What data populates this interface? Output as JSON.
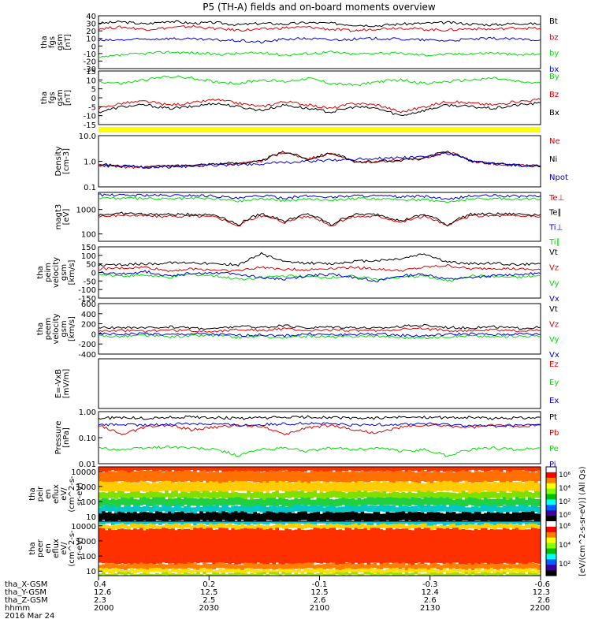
{
  "title": "P5 (TH-A) fields and on-board moments overview",
  "colors": {
    "black": "#000000",
    "red": "#e00000",
    "blue": "#0000e0",
    "green": "#00e000",
    "yellow": "#ffff00"
  },
  "chart_data": [
    {
      "type": "line",
      "ylabel": [
        "tha",
        "fgs",
        "gsm",
        "[nT]"
      ],
      "ylim": [
        -30,
        40
      ],
      "ticks": [
        "40",
        "30",
        "20",
        "10",
        "0",
        "-10",
        "-20",
        "-30"
      ],
      "series": [
        {
          "name": "Bt",
          "color": "#000000",
          "values": [
            30,
            32,
            29,
            33,
            30,
            31,
            28,
            30,
            29,
            31,
            30,
            28,
            27,
            29,
            30,
            31,
            29,
            28,
            30,
            29
          ]
        },
        {
          "name": "bz",
          "color": "#e00000",
          "values": [
            23,
            25,
            22,
            24,
            26,
            23,
            21,
            22,
            24,
            25,
            22,
            20,
            23,
            24,
            22,
            21,
            23,
            22,
            24,
            23
          ]
        },
        {
          "name": "by",
          "color": "#00e000",
          "values": [
            -16,
            -12,
            -10,
            -8,
            -9,
            -11,
            -10,
            -9,
            -12,
            -10,
            -8,
            -11,
            -9,
            -10,
            -12,
            -11,
            -10,
            -9,
            -12,
            -10
          ]
        },
        {
          "name": "bx",
          "color": "#0000e0",
          "values": [
            7,
            8,
            9,
            10,
            9,
            8,
            7,
            5,
            9,
            10,
            8,
            9,
            10,
            9,
            8,
            7,
            9,
            10,
            9,
            8
          ]
        }
      ]
    },
    {
      "type": "line",
      "ylabel": [
        "tha",
        "fgs",
        "gsm",
        "[nT]"
      ],
      "ylim": [
        -15,
        15
      ],
      "ticks": [
        "15",
        "10",
        "5",
        "0",
        "-5",
        "-10",
        "-15"
      ],
      "series": [
        {
          "name": "By",
          "color": "#00e000",
          "values": [
            9,
            8,
            10,
            12,
            11,
            9,
            8,
            10,
            9,
            11,
            8,
            7,
            9,
            10,
            8,
            9,
            10,
            11,
            9,
            8
          ]
        },
        {
          "name": "Bz",
          "color": "#e00000",
          "values": [
            -6,
            -3,
            -2,
            -4,
            -3,
            -1,
            -3,
            -5,
            -2,
            -4,
            -6,
            -3,
            -4,
            -8,
            -5,
            -2,
            -3,
            -4,
            -2,
            -1
          ]
        },
        {
          "name": "Bx",
          "color": "#000000",
          "values": [
            -8,
            -5,
            -4,
            -6,
            -5,
            -3,
            -5,
            -7,
            -4,
            -6,
            -8,
            -5,
            -6,
            -10,
            -7,
            -4,
            -5,
            -6,
            -4,
            -3
          ]
        }
      ]
    },
    {
      "type": "line",
      "ylabel": [
        "Density",
        "[cm-3]"
      ],
      "scale": "log",
      "ylim": [
        0.1,
        10.0
      ],
      "ticks": [
        "10.0",
        "1.0",
        "0.1"
      ],
      "series": [
        {
          "name": "Ne",
          "color": "#e00000",
          "values": [
            0.7,
            0.6,
            0.6,
            0.65,
            0.7,
            0.75,
            0.8,
            1.0,
            2.2,
            1.2,
            2.0,
            0.9,
            1.0,
            1.1,
            1.3,
            2.3,
            1.0,
            0.8,
            0.7,
            0.6
          ]
        },
        {
          "name": "Ni",
          "color": "#000000",
          "values": [
            0.8,
            0.65,
            0.6,
            0.65,
            0.7,
            0.8,
            0.85,
            1.0,
            2.3,
            1.2,
            2.1,
            0.9,
            1.0,
            1.1,
            1.3,
            2.4,
            1.0,
            0.8,
            0.7,
            0.65
          ]
        },
        {
          "name": "Npot",
          "color": "#0000e0",
          "values": [
            0.7,
            0.6,
            0.6,
            0.6,
            0.65,
            0.7,
            0.75,
            0.8,
            0.9,
            1.0,
            1.1,
            1.2,
            1.3,
            1.4,
            1.5,
            2.0,
            1.0,
            0.8,
            0.7,
            0.6
          ]
        }
      ]
    },
    {
      "type": "line",
      "ylabel": [
        "magt3",
        "[eV]"
      ],
      "scale": "log",
      "ylim": [
        50,
        5000
      ],
      "ticks": [
        "1000",
        "100"
      ],
      "series": [
        {
          "name": "Te⊥",
          "color": "#e00000",
          "values": [
            500,
            600,
            550,
            520,
            540,
            500,
            200,
            560,
            300,
            540,
            200,
            520,
            530,
            300,
            520,
            200,
            540,
            560,
            550,
            520
          ]
        },
        {
          "name": "Te∥",
          "color": "#000000",
          "values": [
            600,
            700,
            650,
            620,
            640,
            600,
            220,
            660,
            330,
            640,
            220,
            620,
            630,
            330,
            620,
            220,
            640,
            660,
            650,
            620
          ]
        },
        {
          "name": "Ti⊥",
          "color": "#0000e0",
          "values": [
            4000,
            3800,
            3900,
            3700,
            3800,
            3600,
            2800,
            3700,
            3000,
            3600,
            3200,
            3700,
            3600,
            3300,
            3500,
            2500,
            3600,
            3700,
            3500,
            3600
          ]
        },
        {
          "name": "Ti∥",
          "color": "#00e000",
          "values": [
            3000,
            2900,
            2800,
            2700,
            2900,
            2800,
            2200,
            2800,
            2300,
            2700,
            2500,
            2800,
            2700,
            2500,
            2600,
            2000,
            2700,
            2800,
            2700,
            2700
          ]
        }
      ]
    },
    {
      "type": "line",
      "ylabel": [
        "tha",
        "peim",
        "velocity",
        "gsm",
        "[km/s]"
      ],
      "ylim": [
        -150,
        150
      ],
      "ticks": [
        "150",
        "100",
        "50",
        "0",
        "-50",
        "-100",
        "-150"
      ],
      "series": [
        {
          "name": "Vt",
          "color": "#000000",
          "values": [
            40,
            45,
            50,
            55,
            60,
            50,
            45,
            110,
            60,
            55,
            50,
            65,
            70,
            80,
            110,
            60,
            50,
            55,
            45,
            50
          ]
        },
        {
          "name": "Vz",
          "color": "#e00000",
          "values": [
            20,
            25,
            30,
            10,
            20,
            15,
            10,
            30,
            20,
            15,
            25,
            30,
            20,
            10,
            30,
            40,
            20,
            25,
            20,
            15
          ]
        },
        {
          "name": "Vy",
          "color": "#00e000",
          "values": [
            -10,
            -20,
            -15,
            -30,
            -10,
            -20,
            -40,
            -30,
            -20,
            -25,
            -30,
            -20,
            -40,
            -30,
            -20,
            -50,
            -20,
            -25,
            -30,
            -20
          ]
        },
        {
          "name": "Vx",
          "color": "#0000e0",
          "values": [
            0,
            -10,
            5,
            -20,
            -5,
            0,
            -10,
            -30,
            -40,
            -20,
            -10,
            -30,
            -50,
            -20,
            -10,
            -40,
            -30,
            -20,
            -10,
            -5
          ]
        }
      ]
    },
    {
      "type": "line",
      "ylabel": [
        "tha",
        "peem",
        "velocity",
        "gsm",
        "[km/s]"
      ],
      "ylim": [
        -400,
        600
      ],
      "ticks": [
        "600",
        "400",
        "200",
        "0",
        "-200",
        "-400"
      ],
      "series": [
        {
          "name": "Vt",
          "color": "#000000",
          "values": [
            120,
            130,
            110,
            140,
            120,
            100,
            150,
            130,
            160,
            120,
            140,
            130,
            110,
            150,
            170,
            130,
            120,
            140,
            110,
            130
          ]
        },
        {
          "name": "Vz",
          "color": "#e00000",
          "values": [
            60,
            70,
            50,
            80,
            60,
            50,
            90,
            70,
            100,
            60,
            80,
            70,
            60,
            90,
            100,
            70,
            60,
            80,
            60,
            70
          ]
        },
        {
          "name": "Vy",
          "color": "#00e000",
          "values": [
            -40,
            -50,
            -30,
            -60,
            -40,
            -30,
            -70,
            -50,
            -80,
            -40,
            -60,
            -50,
            -40,
            -70,
            -80,
            -50,
            -40,
            -60,
            -40,
            -50
          ]
        },
        {
          "name": "Vx",
          "color": "#0000e0",
          "values": [
            0,
            -10,
            10,
            -20,
            0,
            -10,
            -30,
            -20,
            -40,
            0,
            -20,
            -10,
            0,
            -30,
            -40,
            -10,
            0,
            -20,
            0,
            -10
          ]
        }
      ]
    },
    {
      "type": "line",
      "ylabel": [
        "E=-VxB",
        "[mV/m]"
      ],
      "ylim": [
        -1,
        1
      ],
      "ticks": [],
      "series": [
        {
          "name": "Ez",
          "color": "#e00000",
          "values": []
        },
        {
          "name": "Ey",
          "color": "#00e000",
          "values": []
        },
        {
          "name": "Ex",
          "color": "#0000e0",
          "values": []
        }
      ]
    },
    {
      "type": "line",
      "ylabel": [
        "Pressure",
        "[nPa]"
      ],
      "scale": "log",
      "ylim": [
        0.01,
        1.0
      ],
      "ticks": [
        "1.00",
        "0.10",
        "0.01"
      ],
      "series": [
        {
          "name": "Pt",
          "color": "#000000",
          "values": [
            0.55,
            0.6,
            0.55,
            0.6,
            0.62,
            0.6,
            0.55,
            0.58,
            0.6,
            0.62,
            0.6,
            0.55,
            0.58,
            0.6,
            0.62,
            0.58,
            0.6,
            0.55,
            0.58,
            0.6
          ]
        },
        {
          "name": "Pb",
          "color": "#e00000",
          "values": [
            0.3,
            0.12,
            0.25,
            0.3,
            0.2,
            0.25,
            0.3,
            0.28,
            0.12,
            0.25,
            0.3,
            0.2,
            0.15,
            0.25,
            0.3,
            0.28,
            0.25,
            0.3,
            0.28,
            0.3
          ]
        },
        {
          "name": "Pe",
          "color": "#00e000",
          "values": [
            0.04,
            0.035,
            0.04,
            0.045,
            0.04,
            0.035,
            0.02,
            0.035,
            0.04,
            0.03,
            0.04,
            0.035,
            0.04,
            0.03,
            0.035,
            0.02,
            0.035,
            0.04,
            0.035,
            0.04
          ]
        },
        {
          "name": "Pi",
          "color": "#0000e0",
          "values": [
            0.3,
            0.32,
            0.3,
            0.33,
            0.35,
            0.34,
            0.3,
            0.32,
            0.34,
            0.36,
            0.34,
            0.3,
            0.32,
            0.33,
            0.35,
            0.32,
            0.3,
            0.28,
            0.3,
            0.32
          ]
        }
      ]
    },
    {
      "type": "heatmap",
      "ylabel": [
        "tha",
        "peir",
        "en",
        "eflux",
        "eV/",
        "(cm^2-s-",
        "sr-eV)"
      ],
      "scale": "log",
      "ylim": [
        5,
        20000
      ],
      "ticks": [
        "10000",
        "1000",
        "100",
        "10"
      ]
    },
    {
      "type": "heatmap",
      "ylabel": [
        "tha",
        "peer",
        "en",
        "eflux",
        "eV/",
        "(cm^2-s-",
        "sr-eV)"
      ],
      "scale": "log",
      "ylim": [
        5,
        20000
      ],
      "ticks": [
        "10000",
        "1000",
        "100",
        "10"
      ]
    }
  ],
  "colorbar": {
    "label": "[eV/(cm^2-s-sr-eV)] (All Qs)",
    "ticks_top": [
      "10^6",
      "10^4",
      "10^2",
      "10^0"
    ],
    "ticks_bottom": [
      "10^6",
      "10^4",
      "10^2"
    ]
  },
  "flag_bar": {
    "color": "#ffff00"
  },
  "xaxis": {
    "row_labels": [
      "tha_X-GSM",
      "tha_Y-GSM",
      "tha_Z-GSM",
      "hhmm",
      "2016 Mar 24"
    ],
    "columns": [
      {
        "values": [
          "0.4",
          "12.6",
          "2.3",
          "2000"
        ]
      },
      {
        "values": [
          "0.2",
          "12.5",
          "2.5",
          "2030"
        ]
      },
      {
        "values": [
          "-0.1",
          "12.5",
          "2.6",
          "2100"
        ]
      },
      {
        "values": [
          "-0.3",
          "12.4",
          "2.6",
          "2130"
        ]
      },
      {
        "values": [
          "-0.6",
          "12.3",
          "2.6",
          "2200"
        ]
      }
    ]
  }
}
